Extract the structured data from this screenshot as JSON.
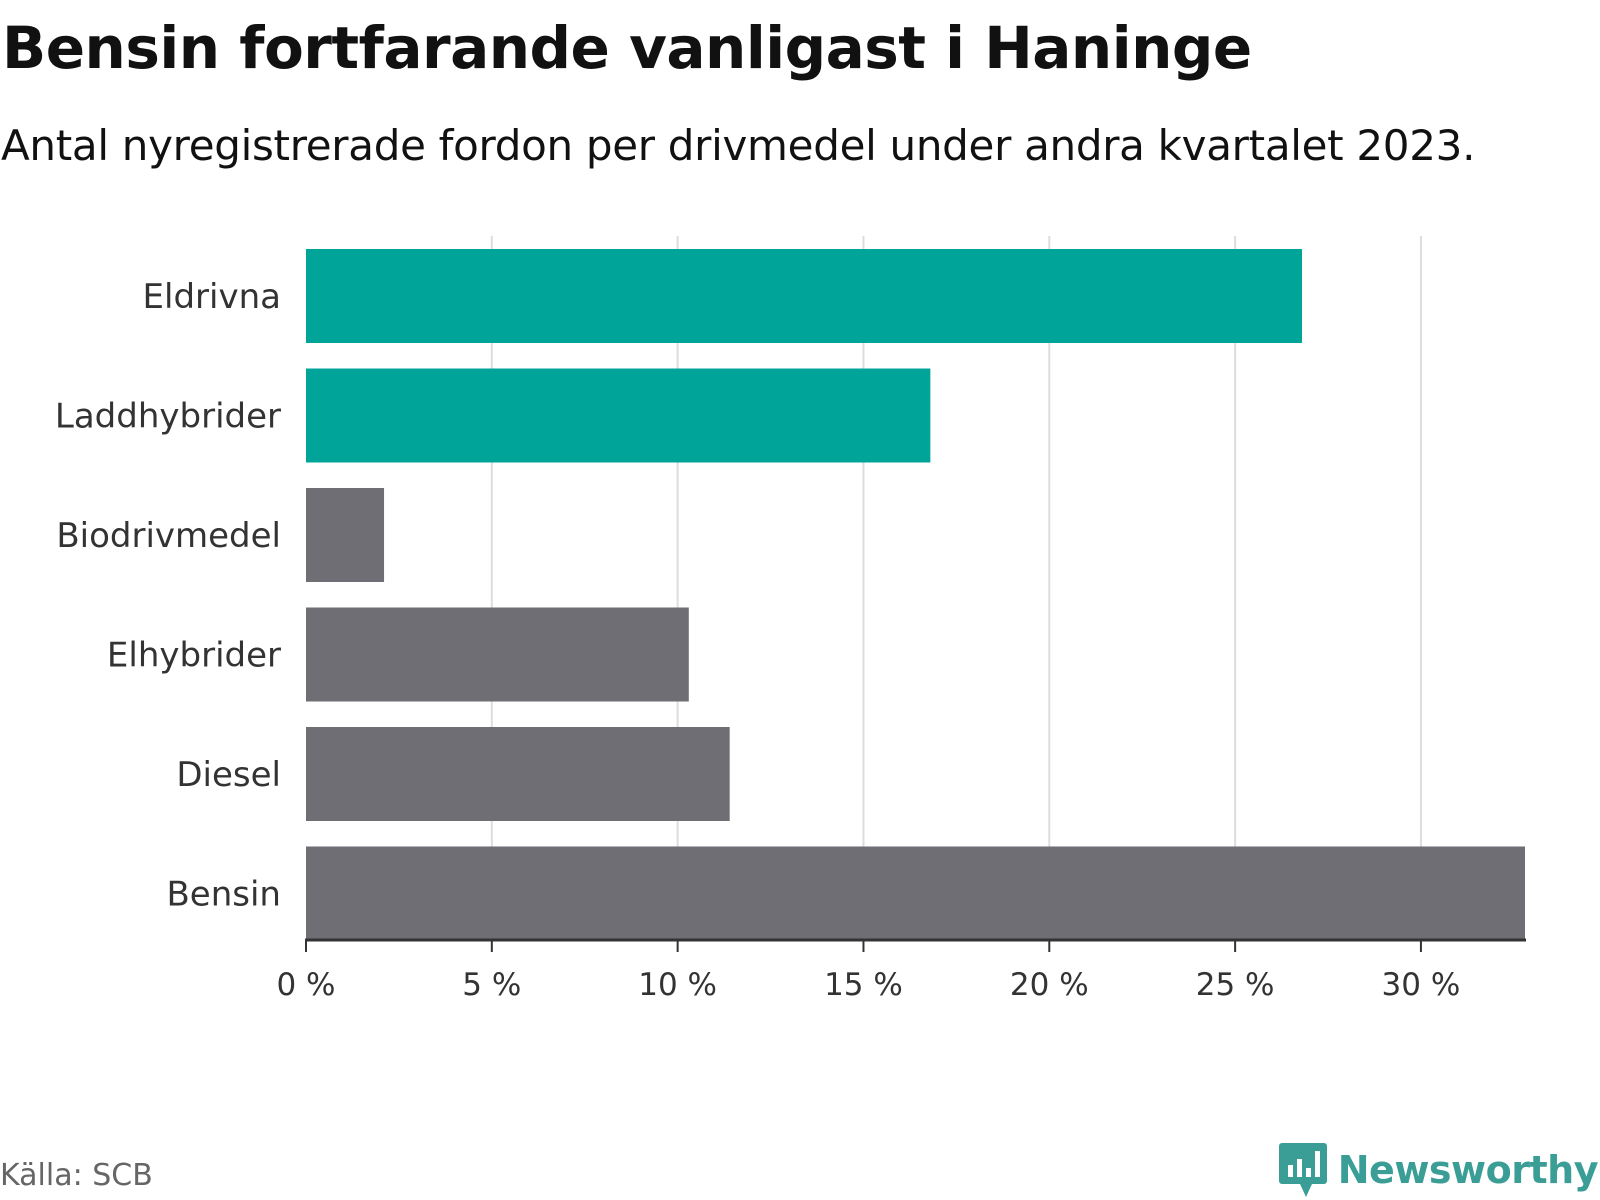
{
  "title": "Bensin fortfarande vanligast i Haninge",
  "subtitle": "Antal nyregistrerade fordon per drivmedel under andra kvartalet 2023.",
  "source": "Källa: SCB",
  "brand": "Newsworthy",
  "colors": {
    "highlight": "#00a499",
    "default": "#6e6e74",
    "grid": "#dddddd",
    "axis": "#333333",
    "brand": "#3a9e97"
  },
  "chart_data": {
    "type": "bar",
    "orientation": "horizontal",
    "title": "Bensin fortfarande vanligast i Haninge",
    "subtitle": "Antal nyregistrerade fordon per drivmedel under andra kvartalet 2023.",
    "categories": [
      "Eldrivna",
      "Laddhybrider",
      "Biodrivmedel",
      "Elhybrider",
      "Diesel",
      "Bensin"
    ],
    "values": [
      26.8,
      16.8,
      2.1,
      10.3,
      11.4,
      32.8
    ],
    "highlighted": [
      true,
      true,
      false,
      false,
      false,
      false
    ],
    "unit": "%",
    "xlim": [
      0,
      32.8
    ],
    "xticks": [
      0,
      5,
      10,
      15,
      20,
      25,
      30
    ],
    "xtick_labels": [
      "0 %",
      "5 %",
      "10 %",
      "15 %",
      "20 %",
      "25 %",
      "30 %"
    ],
    "xlabel": "",
    "ylabel": "",
    "grid": true,
    "legend": "none"
  }
}
